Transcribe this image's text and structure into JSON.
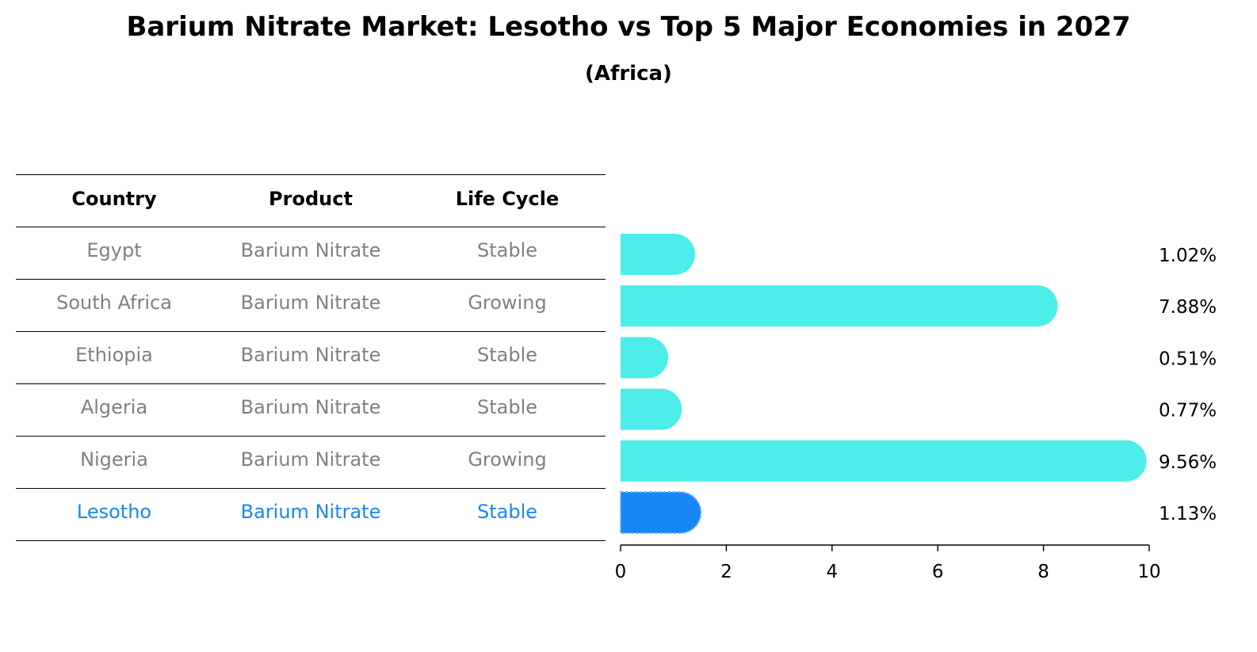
{
  "title": "Barium Nitrate Market: Lesotho vs Top 5 Major Economies in 2027",
  "subtitle": "(Africa)",
  "table": {
    "headers": [
      "Country",
      "Product",
      "Life Cycle"
    ],
    "rows": [
      [
        "Egypt",
        "Barium Nitrate",
        "Stable"
      ],
      [
        "South Africa",
        "Barium Nitrate",
        "Growing"
      ],
      [
        "Ethiopia",
        "Barium Nitrate",
        "Stable"
      ],
      [
        "Algeria",
        "Barium Nitrate",
        "Stable"
      ],
      [
        "Nigeria",
        "Barium Nitrate",
        "Growing"
      ],
      [
        "Lesotho",
        "Barium Nitrate",
        "Stable"
      ]
    ],
    "highlight_row": 5
  },
  "colors": {
    "bar": "#4DEDEA",
    "highlight": "#1787F5",
    "text_muted": "#808080",
    "text_highlight": "#1787F5"
  },
  "chart_data": {
    "type": "bar",
    "orientation": "horizontal",
    "categories": [
      "Egypt",
      "South Africa",
      "Ethiopia",
      "Algeria",
      "Nigeria",
      "Lesotho"
    ],
    "values": [
      1.02,
      7.88,
      0.51,
      0.77,
      9.56,
      1.13
    ],
    "value_labels": [
      "1.02%",
      "7.88%",
      "0.51%",
      "0.77%",
      "9.56%",
      "1.13%"
    ],
    "xlim": [
      0,
      10
    ],
    "xticks": [
      "0",
      "2",
      "4",
      "6",
      "8",
      "10"
    ],
    "highlight": "Lesotho",
    "grid": false
  }
}
